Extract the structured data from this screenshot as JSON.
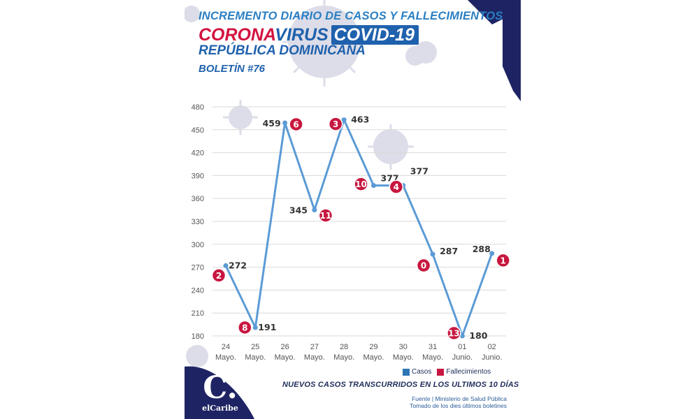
{
  "header": {
    "line1": "INCREMENTO DIARIO DE CASOS Y FALLECIMIENTOS",
    "corona": "CORONA",
    "virus": "VIRUS",
    "covid": "COVID-19",
    "country": "REPÚBLICA DOMINICANA",
    "bulletin": "BOLETÍN #76"
  },
  "colors": {
    "cases": "#5b9bd5",
    "deaths": "#c8173f",
    "navy": "#1e2463",
    "axis_text": "#555555",
    "grid": "#d9d9d9"
  },
  "chart_data": {
    "type": "line",
    "categories": [
      [
        "24",
        "Mayo."
      ],
      [
        "25",
        "Mayo."
      ],
      [
        "26",
        "Mayo."
      ],
      [
        "27",
        "Mayo."
      ],
      [
        "28",
        "Mayo."
      ],
      [
        "29",
        "Mayo."
      ],
      [
        "30",
        "Mayo."
      ],
      [
        "31",
        "Mayo."
      ],
      [
        "01",
        "Junio."
      ],
      [
        "02",
        "Junio."
      ]
    ],
    "series": [
      {
        "name": "Casos",
        "values": [
          272,
          191,
          459,
          345,
          463,
          377,
          377,
          287,
          180,
          288
        ]
      },
      {
        "name": "Fallecimientos",
        "values": [
          2,
          8,
          6,
          11,
          3,
          10,
          4,
          0,
          13,
          1
        ]
      }
    ],
    "ylim": [
      180,
      480
    ],
    "yticks": [
      180,
      210,
      240,
      270,
      300,
      330,
      360,
      390,
      420,
      450,
      480
    ],
    "grid": true,
    "legend_position": "bottom-right"
  },
  "legend": {
    "cases": "Casos",
    "deaths": "Fallecimientos"
  },
  "footer": {
    "subtitle": "NUEVOS CASOS TRANSCURRIDOS EN LOS ULTIMOS 10 DÍAS",
    "source_line1": "Fuente | Ministerio de Salud Pública",
    "source_line2": "Tomado de  los dies últimos boletines",
    "logo_mark": "C.",
    "logo_word": "elCaribe"
  }
}
